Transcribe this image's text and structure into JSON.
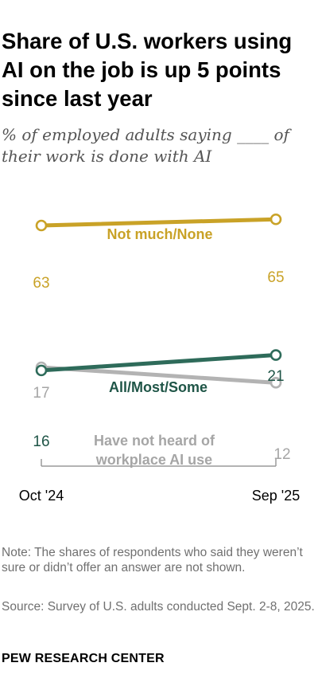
{
  "title": "Share of U.S. workers using AI on the job is up 5 points since last year",
  "subtitle": "% of employed adults saying ____ of their work is done with AI",
  "note": "Note: The shares of respondents who said they weren’t sure or didn’t offer an answer are not shown.",
  "source": "Source: Survey of U.S. adults conducted Sept. 2-8, 2025.",
  "brand": "PEW RESEARCH CENTER",
  "chart_data": {
    "type": "line",
    "x": [
      "Oct '24",
      "Sep '25"
    ],
    "series": [
      {
        "name": "Not much/None",
        "values": [
          63,
          65
        ],
        "color": "#c9a227",
        "label_color": "#c9a227"
      },
      {
        "name": "All/Most/Some",
        "values": [
          16,
          21
        ],
        "color": "#2e6b5a",
        "label_color": "#1f5547"
      },
      {
        "name": "Have not heard of workplace AI use",
        "values": [
          17,
          12
        ],
        "color": "#b3b3b3",
        "label_color": "#a6a6a6"
      }
    ],
    "grid": false,
    "legend": "inline"
  }
}
